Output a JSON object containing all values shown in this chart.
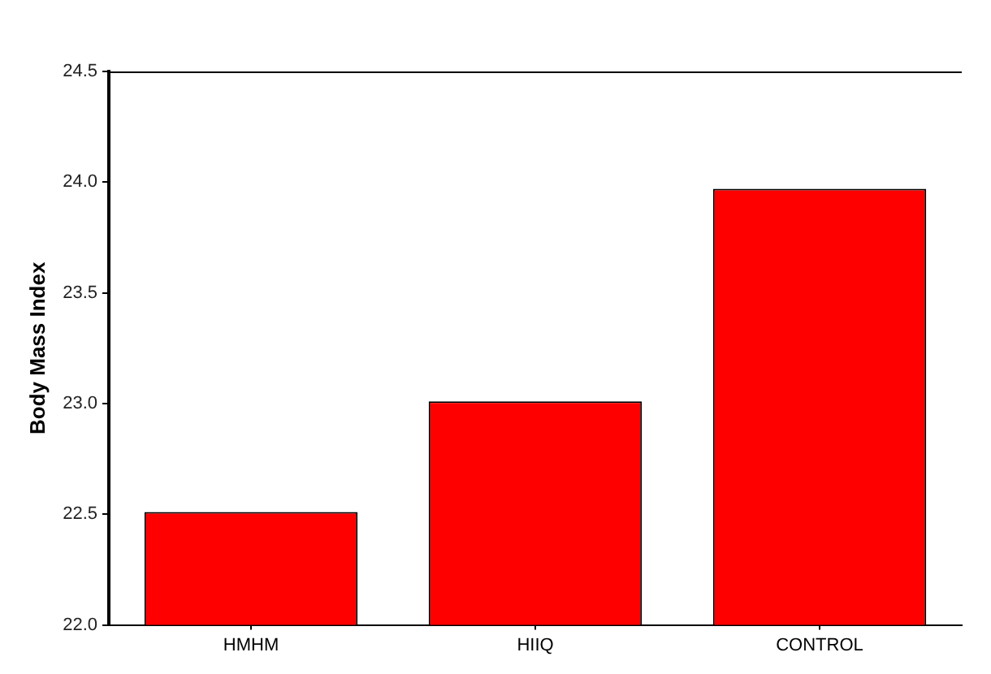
{
  "chart_data": {
    "type": "bar",
    "ylabel": "Body Mass Index",
    "categories": [
      "HMHM",
      "HIIQ",
      "CONTROL"
    ],
    "values": [
      22.51,
      23.01,
      23.97
    ],
    "color": "#ff0000",
    "ylim": [
      22.0,
      24.5
    ],
    "yticks": [
      {
        "value": 22.0,
        "label": "22.0"
      },
      {
        "value": 22.5,
        "label": "22.5"
      },
      {
        "value": 23.0,
        "label": "23.0"
      },
      {
        "value": 23.5,
        "label": "23.5"
      },
      {
        "value": 24.0,
        "label": "24.0"
      },
      {
        "value": 24.5,
        "label": "24.5"
      }
    ],
    "grid": false,
    "legend": false
  }
}
